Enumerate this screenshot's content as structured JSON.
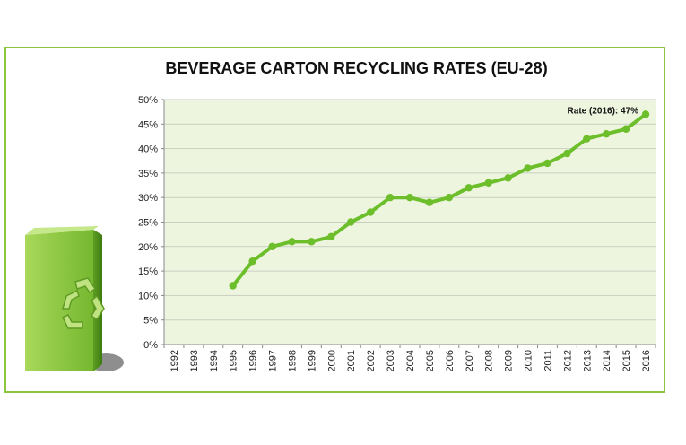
{
  "chart_data": {
    "type": "line",
    "title": "BEVERAGE CARTON RECYCLING RATES (EU-28)",
    "xlabel": "",
    "ylabel": "",
    "categories": [
      "1992",
      "1993",
      "1994",
      "1995",
      "1996",
      "1997",
      "1998",
      "1999",
      "2000",
      "2001",
      "2002",
      "2003",
      "2004",
      "2005",
      "2006",
      "2007",
      "2008",
      "2009",
      "2010",
      "2011",
      "2012",
      "2013",
      "2014",
      "2015",
      "2016"
    ],
    "series": [
      {
        "values": [
          null,
          null,
          null,
          12,
          17,
          20,
          21,
          21,
          22,
          25,
          27,
          30,
          30,
          29,
          30,
          32,
          33,
          34,
          36,
          37,
          39,
          42,
          43,
          44,
          47
        ]
      }
    ],
    "ylim": [
      0,
      50
    ],
    "yticks": [
      "0%",
      "5%",
      "10%",
      "15%",
      "20%",
      "25%",
      "30%",
      "35%",
      "40%",
      "45%",
      "50%"
    ],
    "grid": true,
    "annotation": "Rate (2016): 47%",
    "colors": {
      "line": "#6cbf2a",
      "plot_bg": "#eef5df",
      "grid": "#c9cfc0",
      "frame": "#8cc63f"
    }
  }
}
